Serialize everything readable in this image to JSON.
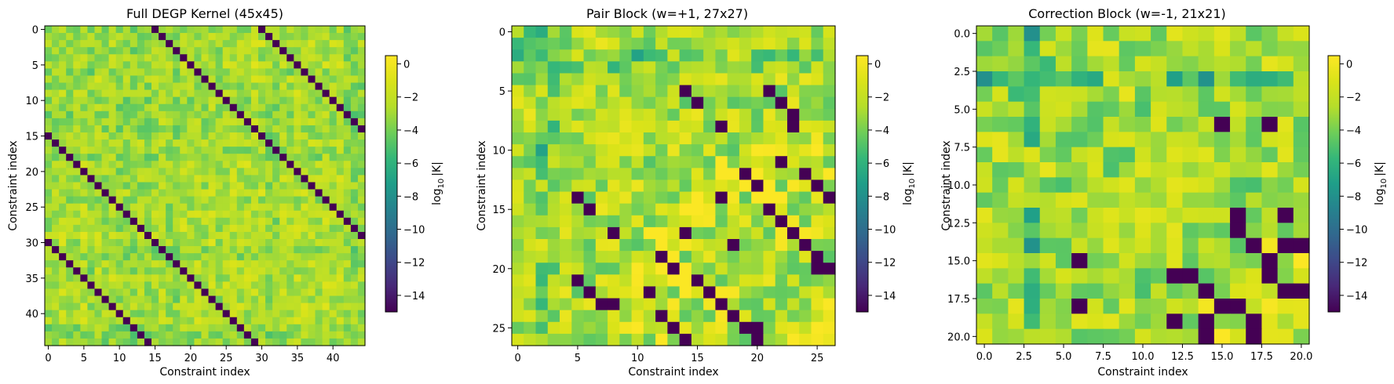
{
  "colorbar": {
    "label_base": "log",
    "label_sub": "10",
    "label_rest": "|K|",
    "ticks": [
      0,
      -2,
      -4,
      -6,
      -8,
      -10,
      -12,
      -14
    ],
    "tick_labels": [
      "0",
      "−2",
      "−4",
      "−6",
      "−8",
      "−10",
      "−12",
      "−14"
    ],
    "vmin": -15,
    "vmax": 0.5,
    "colormap": "viridis"
  },
  "chart_data": [
    {
      "type": "heatmap",
      "title": "Full DEGP Kernel (45x45)",
      "xlabel": "Constraint index",
      "ylabel": "Constraint index",
      "n": 45,
      "xticks": [
        0,
        5,
        10,
        15,
        20,
        25,
        30,
        35,
        40
      ],
      "xtick_labels": [
        "0",
        "5",
        "10",
        "15",
        "20",
        "25",
        "30",
        "35",
        "40"
      ],
      "yticks": [
        0,
        5,
        10,
        15,
        20,
        25,
        30,
        35,
        40
      ],
      "ytick_labels": [
        "0",
        "5",
        "10",
        "15",
        "20",
        "25",
        "30",
        "35",
        "40"
      ],
      "value_range": [
        -15,
        0.5
      ],
      "min_value_pattern": "near-zero entries at (i,j) where i != j and (i - j) mod 15 == 0, shown at about -15 (dark purple)"
    },
    {
      "type": "heatmap",
      "title": "Pair Block (w=+1, 27x27)",
      "xlabel": "Constraint index",
      "ylabel": "Constraint index",
      "n": 27,
      "xticks": [
        0,
        5,
        10,
        15,
        20,
        25
      ],
      "xtick_labels": [
        "0",
        "5",
        "10",
        "15",
        "20",
        "25"
      ],
      "yticks": [
        0,
        5,
        10,
        15,
        20,
        25
      ],
      "ytick_labels": [
        "0",
        "5",
        "10",
        "15",
        "20",
        "25"
      ],
      "value_range": [
        -15,
        0.5
      ],
      "min_value_pattern": "near-zero entries at about -15 along shifted diagonals of the lower-right region"
    },
    {
      "type": "heatmap",
      "title": "Correction Block (w=-1, 21x21)",
      "xlabel": "Constraint index",
      "ylabel": "Constraint index",
      "n": 21,
      "xticks": [
        0,
        2.5,
        5,
        7.5,
        10,
        12.5,
        15,
        17.5,
        20
      ],
      "xtick_labels": [
        "0.0",
        "2.5",
        "5.0",
        "7.5",
        "10.0",
        "12.5",
        "15.0",
        "17.5",
        "20.0"
      ],
      "yticks": [
        0,
        2.5,
        5,
        7.5,
        10,
        12.5,
        15,
        17.5,
        20
      ],
      "ytick_labels": [
        "0.0",
        "2.5",
        "5.0",
        "7.5",
        "10.0",
        "12.5",
        "15.0",
        "17.5",
        "20.0"
      ],
      "value_range": [
        -15,
        0.5
      ],
      "min_value_pattern": "near-zero entries at about -15 at scattered positions in the lower-right region"
    }
  ]
}
